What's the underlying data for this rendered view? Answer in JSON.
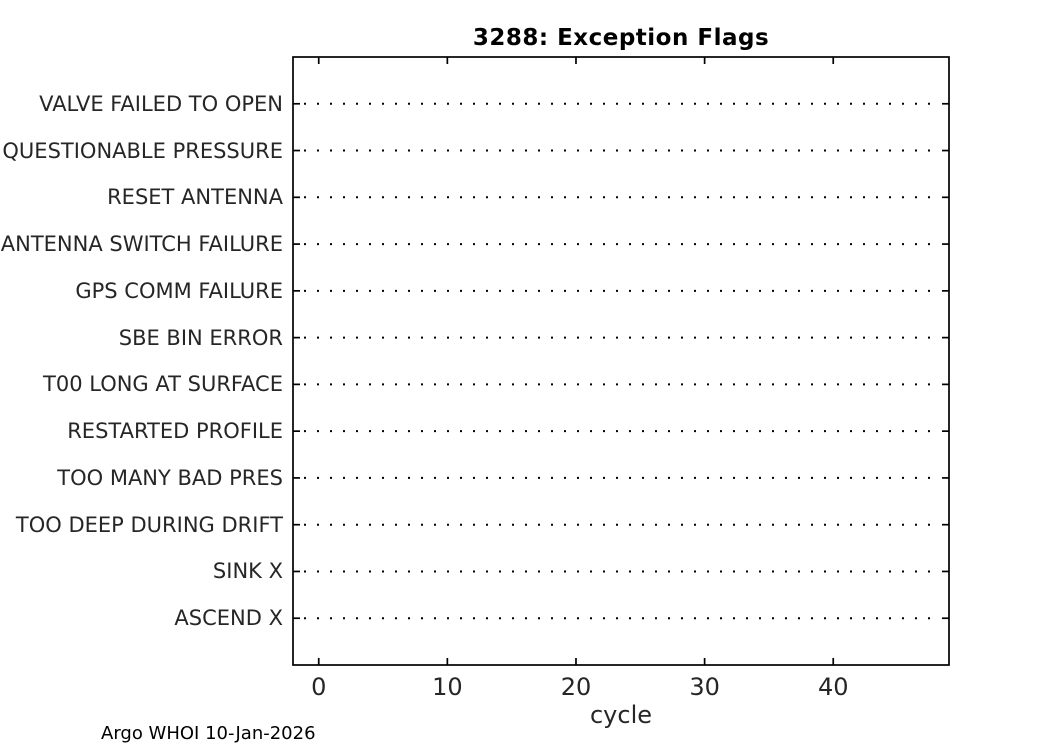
{
  "figure": {
    "title": "3288: Exception Flags",
    "xlabel": "cycle",
    "annotation": "Argo WHOI 10-Jan-2026"
  },
  "chart_data": {
    "type": "scatter",
    "title": "3288: Exception Flags",
    "xlabel": "cycle",
    "ylabel": "",
    "categories": [
      "VALVE FAILED TO OPEN",
      "QUESTIONABLE PRESSURE",
      "RESET ANTENNA",
      "ANTENNA SWITCH FAILURE",
      "GPS COMM FAILURE",
      "SBE BIN ERROR",
      "T00 LONG AT SURFACE",
      "RESTARTED PROFILE",
      "TOO MANY BAD PRES",
      "TOO DEEP DURING DRIFT",
      "SINK X",
      "ASCEND X"
    ],
    "category_order": "top-to-bottom",
    "x_ticks": [
      0,
      10,
      20,
      30,
      40
    ],
    "xlim": [
      -2,
      49
    ],
    "series": [],
    "points": [],
    "grid": "dotted horizontal baseline for each category, no data points plotted",
    "legend": null,
    "annotation": "Argo WHOI 10-Jan-2026"
  },
  "colors": {
    "background": "#ffffff",
    "axis": "#000000",
    "title_text": "#000000",
    "tick_label_text": "#262626",
    "dotted_line": "#000000"
  }
}
